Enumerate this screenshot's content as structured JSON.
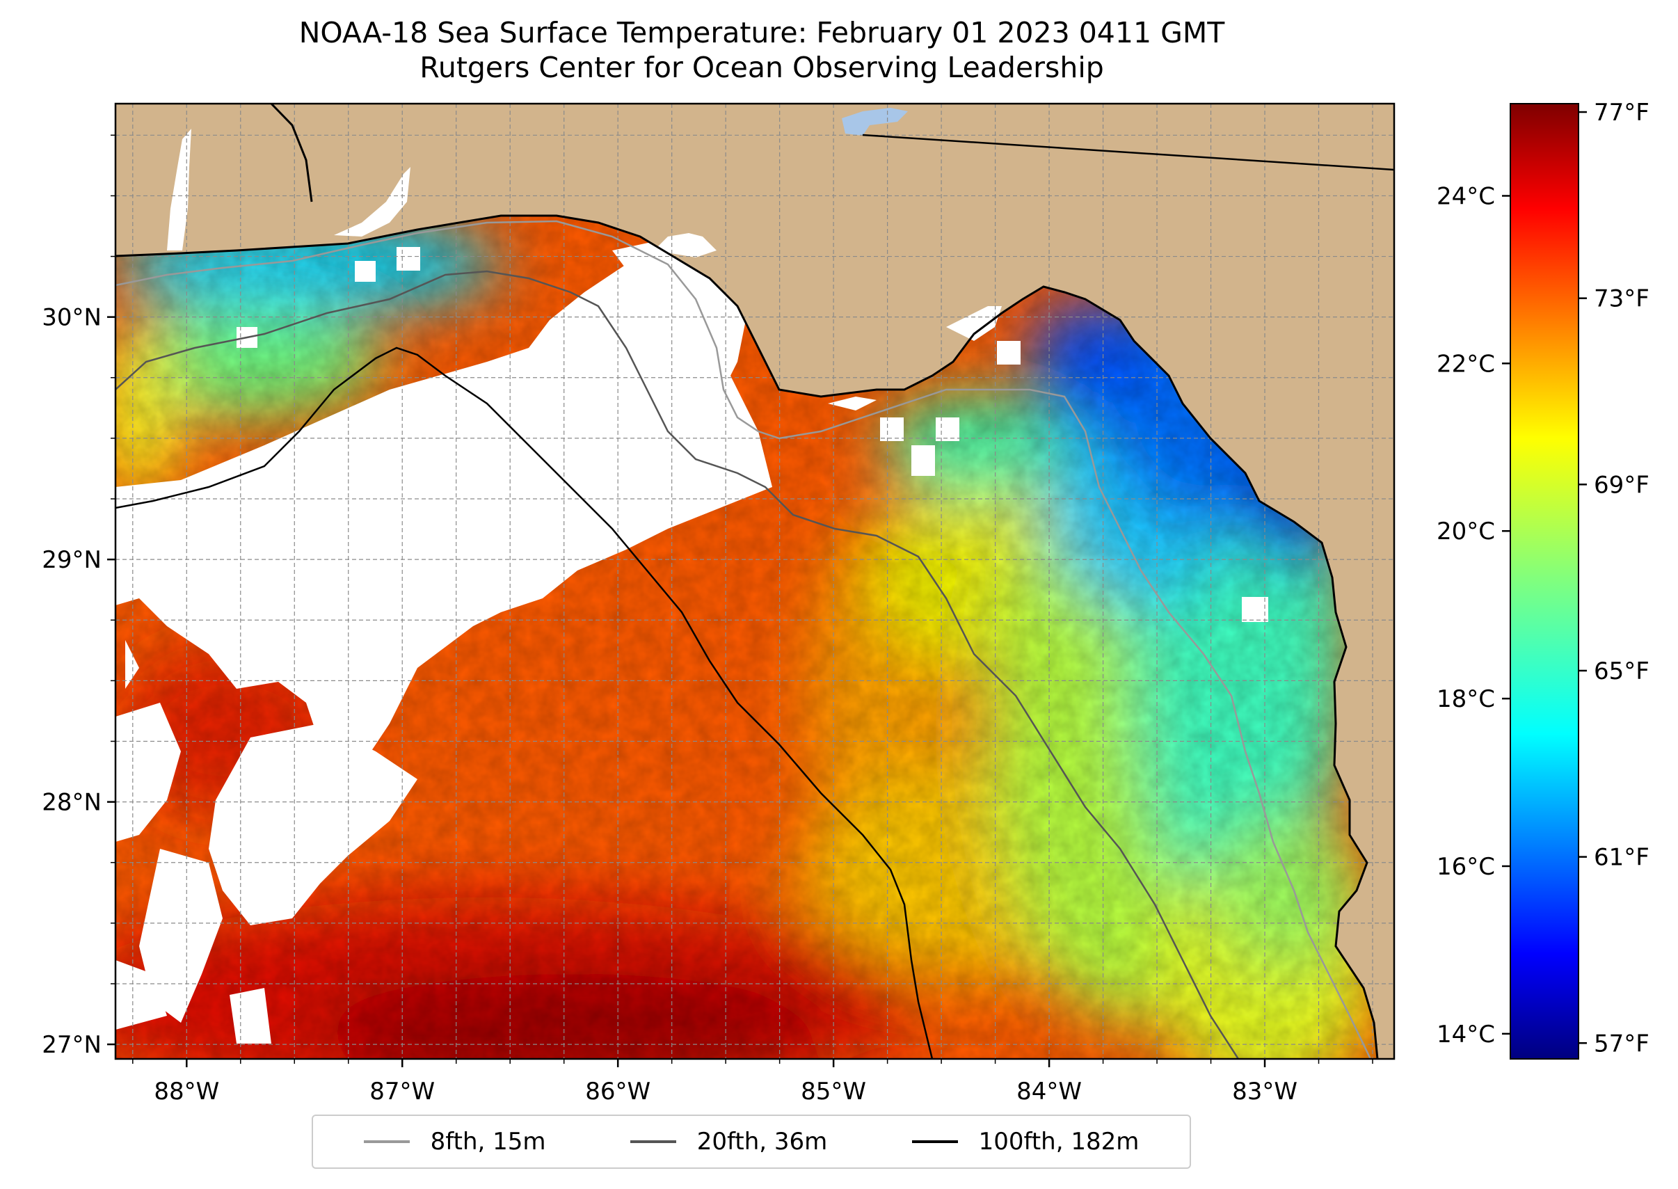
{
  "title": {
    "line1": "NOAA-18 Sea Surface Temperature: February 01 2023 0411 GMT",
    "line2": "Rutgers Center for Ocean Observing Leadership"
  },
  "map": {
    "region": "NE Gulf of Mexico / Florida Big Bend",
    "lon_range": [
      -88.33,
      -82.4
    ],
    "lat_range": [
      26.94,
      30.88
    ],
    "grid": true,
    "land_color": "#d2b48c",
    "no_data_color": "#ffffff",
    "lon_ticks": [
      {
        "value": -88,
        "label": "88°W"
      },
      {
        "value": -87,
        "label": "87°W"
      },
      {
        "value": -86,
        "label": "86°W"
      },
      {
        "value": -85,
        "label": "85°W"
      },
      {
        "value": -84,
        "label": "84°W"
      },
      {
        "value": -83,
        "label": "83°W"
      }
    ],
    "lat_ticks": [
      {
        "value": 30,
        "label": "30°N"
      },
      {
        "value": 29,
        "label": "29°N"
      },
      {
        "value": 28,
        "label": "28°N"
      },
      {
        "value": 27,
        "label": "27°N"
      }
    ]
  },
  "colorbar": {
    "colormap": "jet",
    "range_c": [
      13.7,
      25.1
    ],
    "celsius_ticks": [
      {
        "value": 24,
        "label": "24°C"
      },
      {
        "value": 22,
        "label": "22°C"
      },
      {
        "value": 20,
        "label": "20°C"
      },
      {
        "value": 18,
        "label": "18°C"
      },
      {
        "value": 16,
        "label": "16°C"
      },
      {
        "value": 14,
        "label": "14°C"
      }
    ],
    "fahrenheit_ticks": [
      {
        "value": 77,
        "label": "77°F"
      },
      {
        "value": 73,
        "label": "73°F"
      },
      {
        "value": 69,
        "label": "69°F"
      },
      {
        "value": 65,
        "label": "65°F"
      },
      {
        "value": 61,
        "label": "61°F"
      },
      {
        "value": 57,
        "label": "57°F"
      }
    ]
  },
  "legend": {
    "placement": "bottom-center",
    "items": [
      {
        "label": "8fth, 15m",
        "color": "#999999"
      },
      {
        "label": "20fth, 36m",
        "color": "#555555"
      },
      {
        "label": "100fth, 182m",
        "color": "#000000"
      }
    ]
  }
}
